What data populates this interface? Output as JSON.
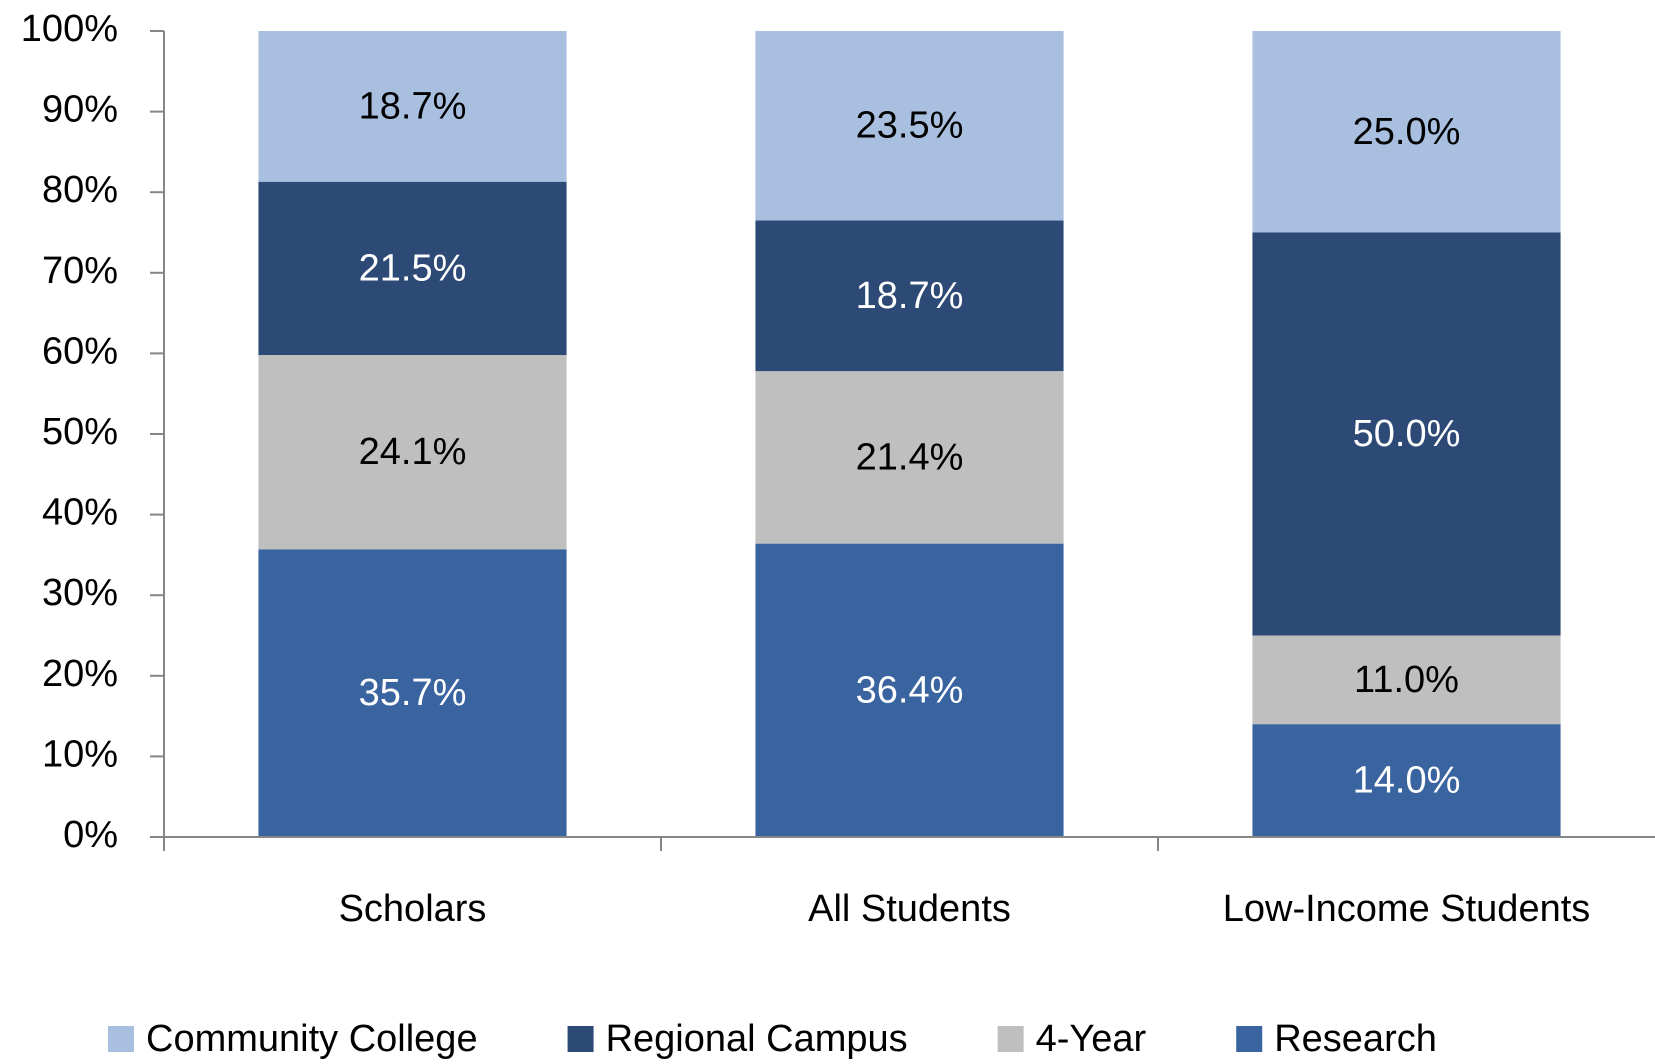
{
  "chart_data": {
    "type": "stacked_bar",
    "categories": [
      "Scholars",
      "All Students",
      "Low-Income Students"
    ],
    "series": [
      {
        "name": "Community College",
        "color": "#a9bfe0",
        "values": [
          18.7,
          23.5,
          25.0
        ],
        "value_labels": [
          "18.7%",
          "23.5%",
          "25.0%"
        ]
      },
      {
        "name": "Regional Campus",
        "color": "#2d4a76",
        "values": [
          21.5,
          18.7,
          50.0
        ],
        "value_labels": [
          "21.5%",
          "18.7%",
          "50.0%"
        ]
      },
      {
        "name": "4-Year",
        "color": "#bfbfbf",
        "values": [
          24.1,
          21.4,
          11.0
        ],
        "value_labels": [
          "24.1%",
          "21.4%",
          "11.0%"
        ]
      },
      {
        "name": "Research",
        "color": "#3a64a0",
        "values": [
          35.7,
          36.4,
          14.0
        ],
        "value_labels": [
          "35.7%",
          "36.4%",
          "14.0%"
        ]
      }
    ],
    "ylim": [
      0,
      100
    ],
    "yticks": [
      {
        "value": 0,
        "label": "0%"
      },
      {
        "value": 10,
        "label": "10%"
      },
      {
        "value": 20,
        "label": "20%"
      },
      {
        "value": 30,
        "label": "30%"
      },
      {
        "value": 40,
        "label": "40%"
      },
      {
        "value": 50,
        "label": "50%"
      },
      {
        "value": 60,
        "label": "60%"
      },
      {
        "value": 70,
        "label": "70%"
      },
      {
        "value": 80,
        "label": "80%"
      },
      {
        "value": 90,
        "label": "90%"
      },
      {
        "value": 100,
        "label": "100%"
      }
    ],
    "grid": false,
    "legend": "bottom"
  }
}
